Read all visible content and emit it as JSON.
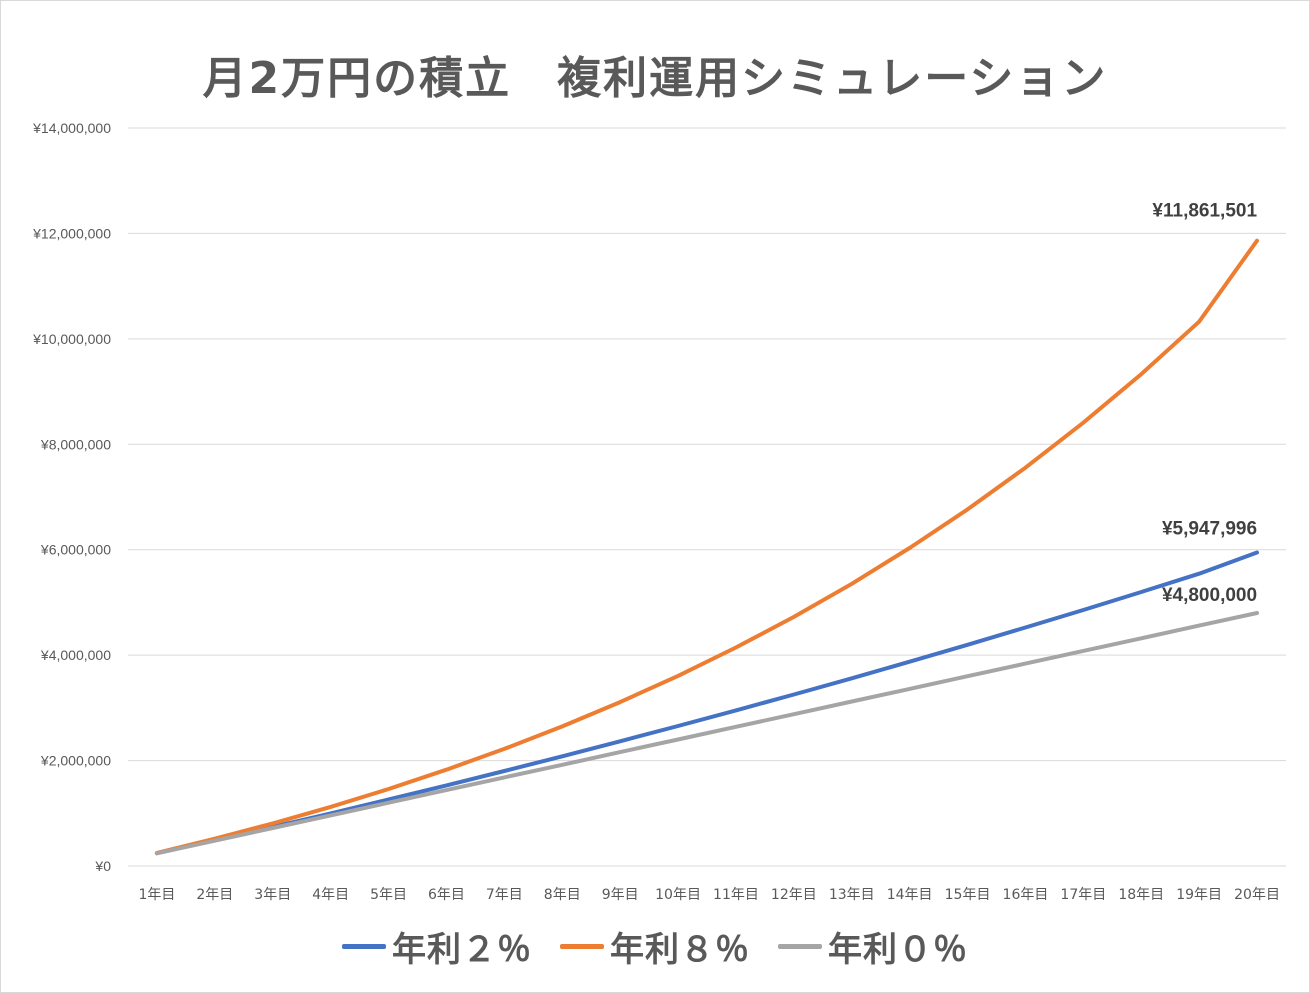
{
  "chart_data": {
    "type": "line",
    "title": "月2万円の積立　複利運用シミュレーション",
    "categories": [
      "1年目",
      "2年目",
      "3年目",
      "4年目",
      "5年目",
      "6年目",
      "7年目",
      "8年目",
      "9年目",
      "10年目",
      "11年目",
      "12年目",
      "13年目",
      "14年目",
      "15年目",
      "16年目",
      "17年目",
      "18年目",
      "19年目",
      "20年目"
    ],
    "series": [
      {
        "name": "年利２％",
        "color": "#4472c4",
        "values": [
          242213,
          489324,
          741436,
          998651,
          1261076,
          1528817,
          1801982,
          2080681,
          2365027,
          2655136,
          2951124,
          3253109,
          3561213,
          3875558,
          4196271,
          4523480,
          4857315,
          5197911,
          5545403,
          5947996
        ],
        "end_label": "¥5,947,996"
      },
      {
        "name": "年利８％",
        "color": "#ed7d31",
        "values": [
          249000,
          518000,
          808000,
          1121000,
          1460000,
          1826000,
          2221000,
          2648000,
          3109000,
          3607000,
          4145000,
          4726000,
          5354000,
          6032000,
          6764000,
          7555000,
          8409000,
          9331000,
          10326000,
          11861501
        ],
        "end_label": "¥11,861,501"
      },
      {
        "name": "年利０％",
        "color": "#a5a5a5",
        "values": [
          240000,
          480000,
          720000,
          960000,
          1200000,
          1440000,
          1680000,
          1920000,
          2160000,
          2400000,
          2640000,
          2880000,
          3120000,
          3360000,
          3600000,
          3840000,
          4080000,
          4320000,
          4560000,
          4800000
        ],
        "end_label": "¥4,800,000"
      }
    ],
    "y_ticks": [
      "¥0",
      "¥2,000,000",
      "¥4,000,000",
      "¥6,000,000",
      "¥8,000,000",
      "¥10,000,000",
      "¥12,000,000",
      "¥14,000,000"
    ],
    "ylim": [
      0,
      14000000
    ],
    "ystep": 2000000,
    "grid": true,
    "legend_position": "bottom"
  }
}
